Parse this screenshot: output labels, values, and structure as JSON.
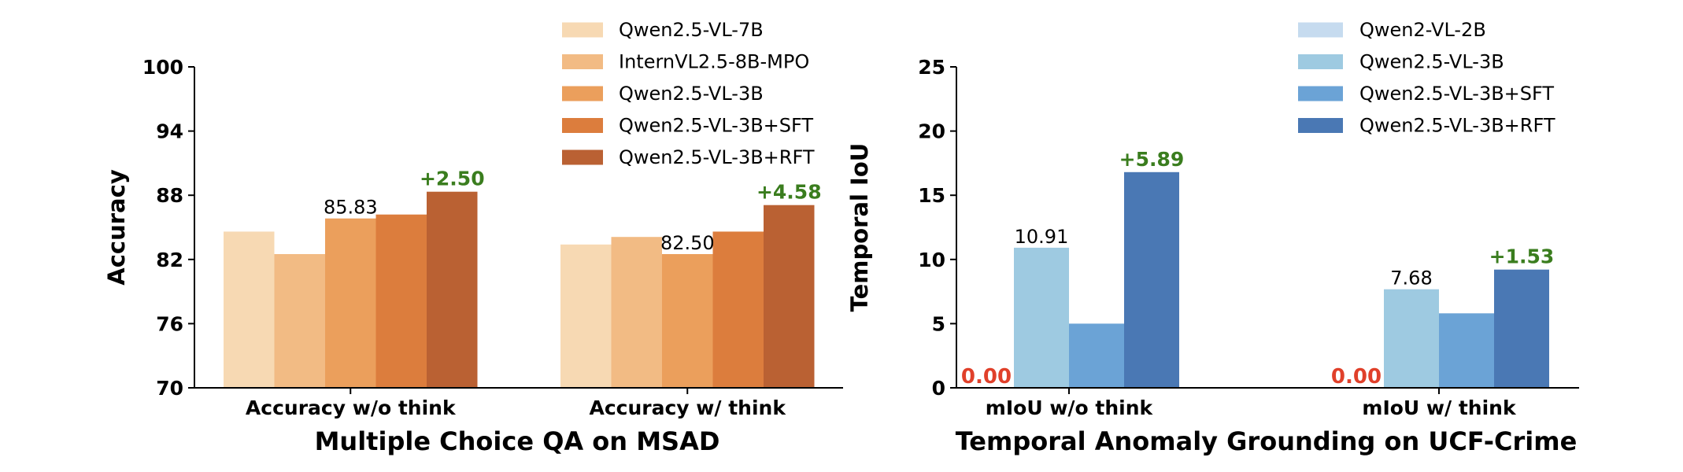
{
  "chart_data": [
    {
      "type": "bar",
      "title": "",
      "xlabel": "Multiple Choice QA on MSAD",
      "ylabel": "Accuracy",
      "ylim": [
        70,
        100
      ],
      "yticks": [
        70,
        76,
        82,
        88,
        94,
        100
      ],
      "grid": false,
      "legend_position": "top-right",
      "categories": [
        "Accuracy w/o think",
        "Accuracy w/ think"
      ],
      "series": [
        {
          "name": "Qwen2.5-VL-7B",
          "color": "#f7d9b3",
          "values": [
            84.6,
            83.4
          ]
        },
        {
          "name": "InternVL2.5-8B-MPO",
          "color": "#f2bb84",
          "values": [
            82.5,
            84.1
          ]
        },
        {
          "name": "Qwen2.5-VL-3B",
          "color": "#eb9f5c",
          "values": [
            85.83,
            82.5
          ]
        },
        {
          "name": "Qwen2.5-VL-3B+SFT",
          "color": "#dc7d3d",
          "values": [
            86.2,
            84.6
          ]
        },
        {
          "name": "Qwen2.5-VL-3B+RFT",
          "color": "#ba6133",
          "values": [
            88.33,
            87.08
          ]
        }
      ],
      "annotations": [
        {
          "category": 0,
          "series": 2,
          "text": "85.83",
          "kind": "value"
        },
        {
          "category": 0,
          "series": 4,
          "text": "+2.50",
          "kind": "delta"
        },
        {
          "category": 1,
          "series": 2,
          "text": "82.50",
          "kind": "value"
        },
        {
          "category": 1,
          "series": 4,
          "text": "+4.58",
          "kind": "delta"
        }
      ]
    },
    {
      "type": "bar",
      "title": "",
      "xlabel": "Temporal Anomaly Grounding on UCF-Crime",
      "ylabel": "Temporal IoU",
      "ylim": [
        0,
        25
      ],
      "yticks": [
        0,
        5,
        10,
        15,
        20,
        25
      ],
      "grid": false,
      "legend_position": "top-right",
      "categories": [
        "mIoU w/o think",
        "mIoU w/ think"
      ],
      "series": [
        {
          "name": "Qwen2-VL-2B",
          "color": "#c6dbef",
          "values": [
            0.0,
            0.0
          ]
        },
        {
          "name": "Qwen2.5-VL-3B",
          "color": "#9ecae1",
          "values": [
            10.91,
            7.68
          ]
        },
        {
          "name": "Qwen2.5-VL-3B+SFT",
          "color": "#6ba3d6",
          "values": [
            5.0,
            5.8
          ]
        },
        {
          "name": "Qwen2.5-VL-3B+RFT",
          "color": "#4a78b4",
          "values": [
            16.8,
            9.21
          ]
        }
      ],
      "annotations": [
        {
          "category": 0,
          "series": 0,
          "text": "0.00",
          "kind": "zero"
        },
        {
          "category": 0,
          "series": 1,
          "text": "10.91",
          "kind": "value"
        },
        {
          "category": 0,
          "series": 3,
          "text": "+5.89",
          "kind": "delta"
        },
        {
          "category": 1,
          "series": 0,
          "text": "0.00",
          "kind": "zero"
        },
        {
          "category": 1,
          "series": 1,
          "text": "7.68",
          "kind": "value"
        },
        {
          "category": 1,
          "series": 3,
          "text": "+1.53",
          "kind": "delta"
        }
      ]
    }
  ],
  "colors": {
    "delta": "#3a7d1e",
    "zero": "#e0402a",
    "axis": "#000000"
  }
}
